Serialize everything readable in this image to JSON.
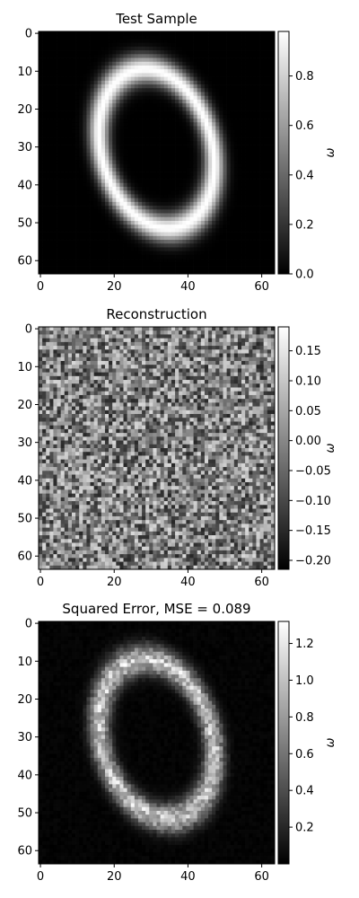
{
  "chart_data": [
    {
      "type": "heatmap",
      "title": "Test Sample",
      "xlim": [
        0,
        64
      ],
      "ylim": [
        64,
        0
      ],
      "xticks": [
        "0",
        "20",
        "40",
        "60"
      ],
      "yticks": [
        "0",
        "10",
        "20",
        "30",
        "40",
        "50",
        "60"
      ],
      "colorbar": {
        "label": "ω",
        "range": [
          0.0,
          0.98
        ],
        "ticks": [
          "0.0",
          "0.2",
          "0.4",
          "0.6",
          "0.8"
        ]
      },
      "colormap": "gray",
      "content": "ellipse_zero",
      "ring": {
        "center": [
          32,
          31
        ],
        "radius_x": 15,
        "radius_y": 21.5,
        "tilt_deg": -17
      },
      "value_max": 0.98
    },
    {
      "type": "heatmap",
      "title": "Reconstruction",
      "xlim": [
        0,
        64
      ],
      "ylim": [
        64,
        0
      ],
      "xticks": [
        "0",
        "20",
        "40",
        "60"
      ],
      "yticks": [
        "0",
        "10",
        "20",
        "30",
        "40",
        "50",
        "60"
      ],
      "colorbar": {
        "label": "ω",
        "range": [
          -0.215,
          0.19
        ],
        "ticks": [
          "0.15",
          "0.10",
          "0.05",
          "0.00",
          "−0.05",
          "−0.10",
          "−0.15",
          "−0.20"
        ]
      },
      "colormap": "gray",
      "content": "noise"
    },
    {
      "type": "heatmap",
      "title": "Squared Error, MSE = 0.089",
      "xlim": [
        0,
        64
      ],
      "ylim": [
        64,
        0
      ],
      "xticks": [
        "0",
        "20",
        "40",
        "60"
      ],
      "yticks": [
        "0",
        "10",
        "20",
        "30",
        "40",
        "50",
        "60"
      ],
      "colorbar": {
        "label": "ω",
        "range": [
          0.0,
          1.32
        ],
        "ticks": [
          "0.2",
          "0.4",
          "0.6",
          "0.8",
          "1.0",
          "1.2"
        ]
      },
      "colormap": "gray",
      "content": "ellipse_zero_noisy",
      "ring": {
        "center": [
          32,
          31
        ],
        "radius_x": 15,
        "radius_y": 21.5,
        "tilt_deg": -17
      },
      "value_max": 1.3
    }
  ]
}
